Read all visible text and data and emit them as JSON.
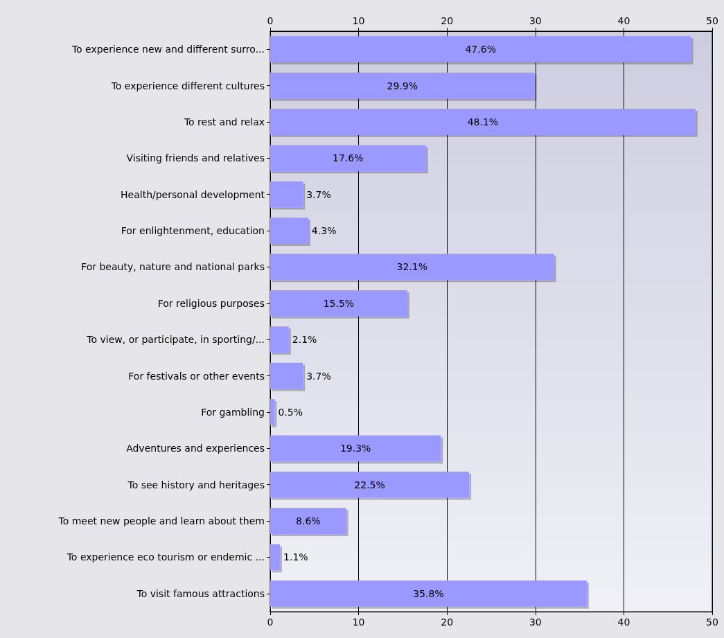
{
  "chart_data": {
    "type": "bar",
    "orientation": "horizontal",
    "categories": [
      "To experience new and different surro...",
      "To experience different cultures",
      "To rest and relax",
      "Visiting friends and relatives",
      "Health/personal development",
      "For enlightenment, education",
      "For beauty, nature and national parks",
      "For religious purposes",
      "To view, or participate, in sporting/...",
      "For festivals or other events",
      "For gambling",
      "Adventures and experiences",
      "To see history and heritages",
      "To meet new people and learn about them",
      "To experience eco tourism or endemic ...",
      "To visit famous attractions"
    ],
    "values": [
      47.6,
      29.9,
      48.1,
      17.6,
      3.7,
      4.3,
      32.1,
      15.5,
      2.1,
      3.7,
      0.5,
      19.3,
      22.5,
      8.6,
      1.1,
      35.8
    ],
    "value_labels": [
      "47.6%",
      "29.9%",
      "48.1%",
      "17.6%",
      "3.7%",
      "4.3%",
      "32.1%",
      "15.5%",
      "2.1%",
      "3.7%",
      "0.5%",
      "19.3%",
      "22.5%",
      "8.6%",
      "1.1%",
      "35.8%"
    ],
    "color": "#9999ff",
    "xlim": [
      0,
      50
    ],
    "xticks": [
      0,
      10,
      20,
      30,
      40,
      50
    ],
    "x2lim": [
      0,
      50
    ],
    "x2ticks": [
      0,
      10,
      20,
      30,
      40,
      50
    ],
    "grid": "x"
  }
}
